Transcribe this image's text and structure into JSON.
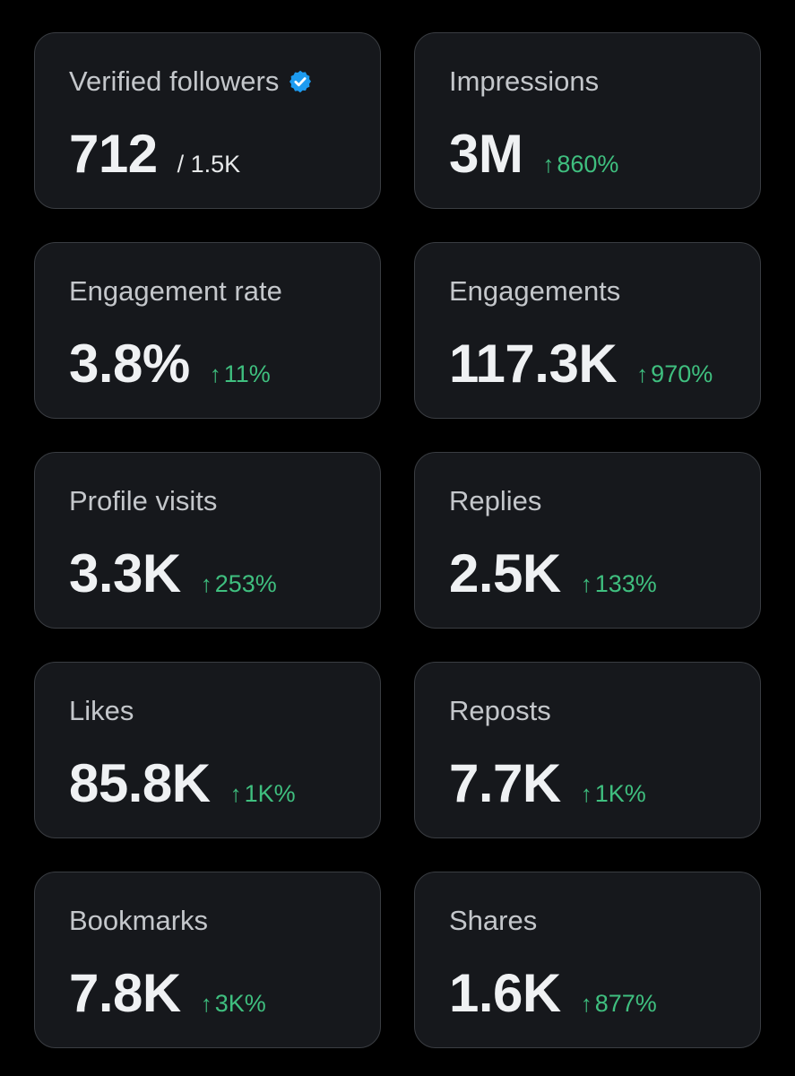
{
  "colors": {
    "background": "#000000",
    "card": "#16181c",
    "card_border": "#3a3d42",
    "label": "#c4c7cb",
    "value": "#eff1f3",
    "positive_change": "#3fbf7f",
    "verified_badge": "#1d9bf0"
  },
  "metrics": [
    {
      "label": "Verified followers",
      "value": "712",
      "total": "/ 1.5K",
      "icon": "verified-badge-icon"
    },
    {
      "label": "Impressions",
      "value": "3M",
      "change": "860%",
      "change_icon": "arrow-up-icon"
    },
    {
      "label": "Engagement rate",
      "value": "3.8%",
      "change": "11%",
      "change_icon": "arrow-up-icon"
    },
    {
      "label": "Engagements",
      "value": "117.3K",
      "change": "970%",
      "change_icon": "arrow-up-icon"
    },
    {
      "label": "Profile visits",
      "value": "3.3K",
      "change": "253%",
      "change_icon": "arrow-up-icon"
    },
    {
      "label": "Replies",
      "value": "2.5K",
      "change": "133%",
      "change_icon": "arrow-up-icon"
    },
    {
      "label": "Likes",
      "value": "85.8K",
      "change": "1K%",
      "change_icon": "arrow-up-icon"
    },
    {
      "label": "Reposts",
      "value": "7.7K",
      "change": "1K%",
      "change_icon": "arrow-up-icon"
    },
    {
      "label": "Bookmarks",
      "value": "7.8K",
      "change": "3K%",
      "change_icon": "arrow-up-icon"
    },
    {
      "label": "Shares",
      "value": "1.6K",
      "change": "877%",
      "change_icon": "arrow-up-icon"
    }
  ]
}
